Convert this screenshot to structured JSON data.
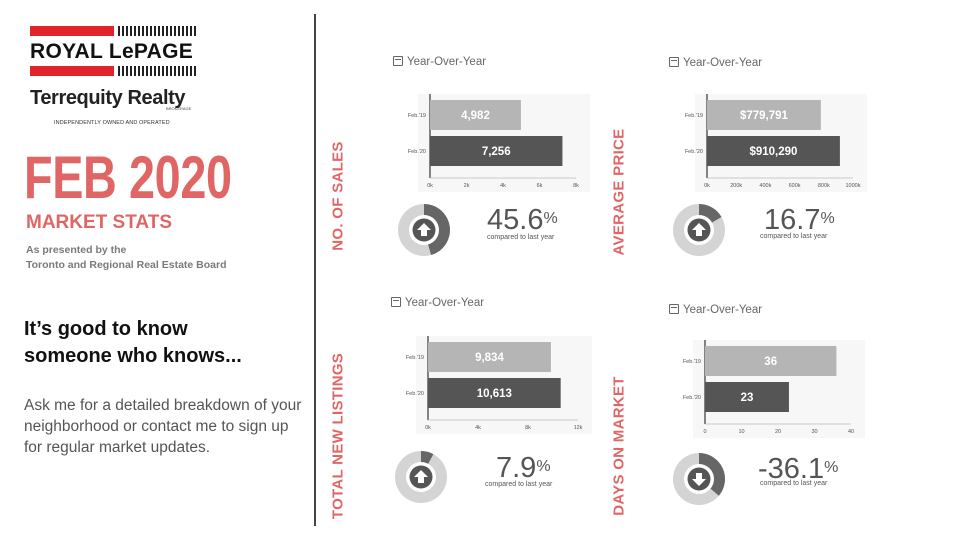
{
  "brand": {
    "name_line1": "ROYAL LePAGE",
    "name_line2": "Terrequity Realty",
    "brokerage": "BROKERAGE",
    "tagline": "INDEPENDENTLY OWNED AND OPERATED",
    "red": "#e0242c"
  },
  "headline": {
    "month": "FEB 2020",
    "subtitle": "MARKET STATS",
    "presented_line1": "As presented by the",
    "presented_line2": "Toronto and Regional Real Estate Board",
    "accent": "#e06666"
  },
  "pitch": {
    "heading_line1": "It’s good to know",
    "heading_line2": "someone who knows...",
    "body": "Ask me for a detailed breakdown of your neighborhood or contact me to sign up for regular market updates."
  },
  "chart_data": [
    {
      "type": "bar",
      "side_label": "NO. OF SALES",
      "title": "Year-Over-Year",
      "categories": [
        "Feb.'19",
        "Feb.'20"
      ],
      "values": [
        4982,
        7256
      ],
      "value_labels": [
        "4,982",
        "7,256"
      ],
      "xlim": [
        0,
        8000
      ],
      "ticks": [
        0,
        2000,
        4000,
        6000,
        8000
      ],
      "tick_labels": [
        "0k",
        "2k",
        "4k",
        "6k",
        "8k"
      ],
      "change_value": "45.6",
      "change_unit": "%",
      "change_caption": "compared to last year",
      "direction": "up",
      "donut_fraction": 0.456,
      "colors": {
        "bar_prev": "#b5b5b5",
        "bar_curr": "#555555",
        "donut_fill": "#666666",
        "donut_track": "#d4d4d4"
      }
    },
    {
      "type": "bar",
      "side_label": "AVERAGE PRICE",
      "title": "Year-Over-Year",
      "categories": [
        "Feb.'19",
        "Feb.'20"
      ],
      "values": [
        779791,
        910290
      ],
      "value_labels": [
        "$779,791",
        "$910,290"
      ],
      "xlim": [
        0,
        1000000
      ],
      "ticks": [
        0,
        200000,
        400000,
        600000,
        800000,
        1000000
      ],
      "tick_labels": [
        "0k",
        "200k",
        "400k",
        "600k",
        "800k",
        "1000k"
      ],
      "change_value": "16.7",
      "change_unit": "%",
      "change_caption": "compared to last year",
      "direction": "up",
      "donut_fraction": 0.167,
      "colors": {
        "bar_prev": "#b5b5b5",
        "bar_curr": "#555555",
        "donut_fill": "#666666",
        "donut_track": "#d4d4d4"
      }
    },
    {
      "type": "bar",
      "side_label": "TOTAL NEW LISTINGS",
      "title": "Year-Over-Year",
      "categories": [
        "Feb.'19",
        "Feb.'20"
      ],
      "values": [
        9834,
        10613
      ],
      "value_labels": [
        "9,834",
        "10,613"
      ],
      "xlim": [
        0,
        12000
      ],
      "ticks": [
        0,
        4000,
        8000,
        12000
      ],
      "tick_labels": [
        "0k",
        "4k",
        "8k",
        "12k"
      ],
      "change_value": "7.9",
      "change_unit": "%",
      "change_caption": "compared to last year",
      "direction": "up",
      "donut_fraction": 0.079,
      "colors": {
        "bar_prev": "#b5b5b5",
        "bar_curr": "#555555",
        "donut_fill": "#666666",
        "donut_track": "#d4d4d4"
      }
    },
    {
      "type": "bar",
      "side_label": "DAYS ON MARKET",
      "title": "Year-Over-Year",
      "categories": [
        "Feb.'19",
        "Feb.'20"
      ],
      "values": [
        36,
        23
      ],
      "value_labels": [
        "36",
        "23"
      ],
      "xlim": [
        0,
        40
      ],
      "ticks": [
        0,
        10,
        20,
        30,
        40
      ],
      "tick_labels": [
        "0",
        "10",
        "20",
        "30",
        "40"
      ],
      "change_value": "-36.1",
      "change_unit": "%",
      "change_caption": "compared to last year",
      "direction": "down",
      "donut_fraction": 0.361,
      "colors": {
        "bar_prev": "#b5b5b5",
        "bar_curr": "#555555",
        "donut_fill": "#666666",
        "donut_track": "#d4d4d4"
      }
    }
  ]
}
